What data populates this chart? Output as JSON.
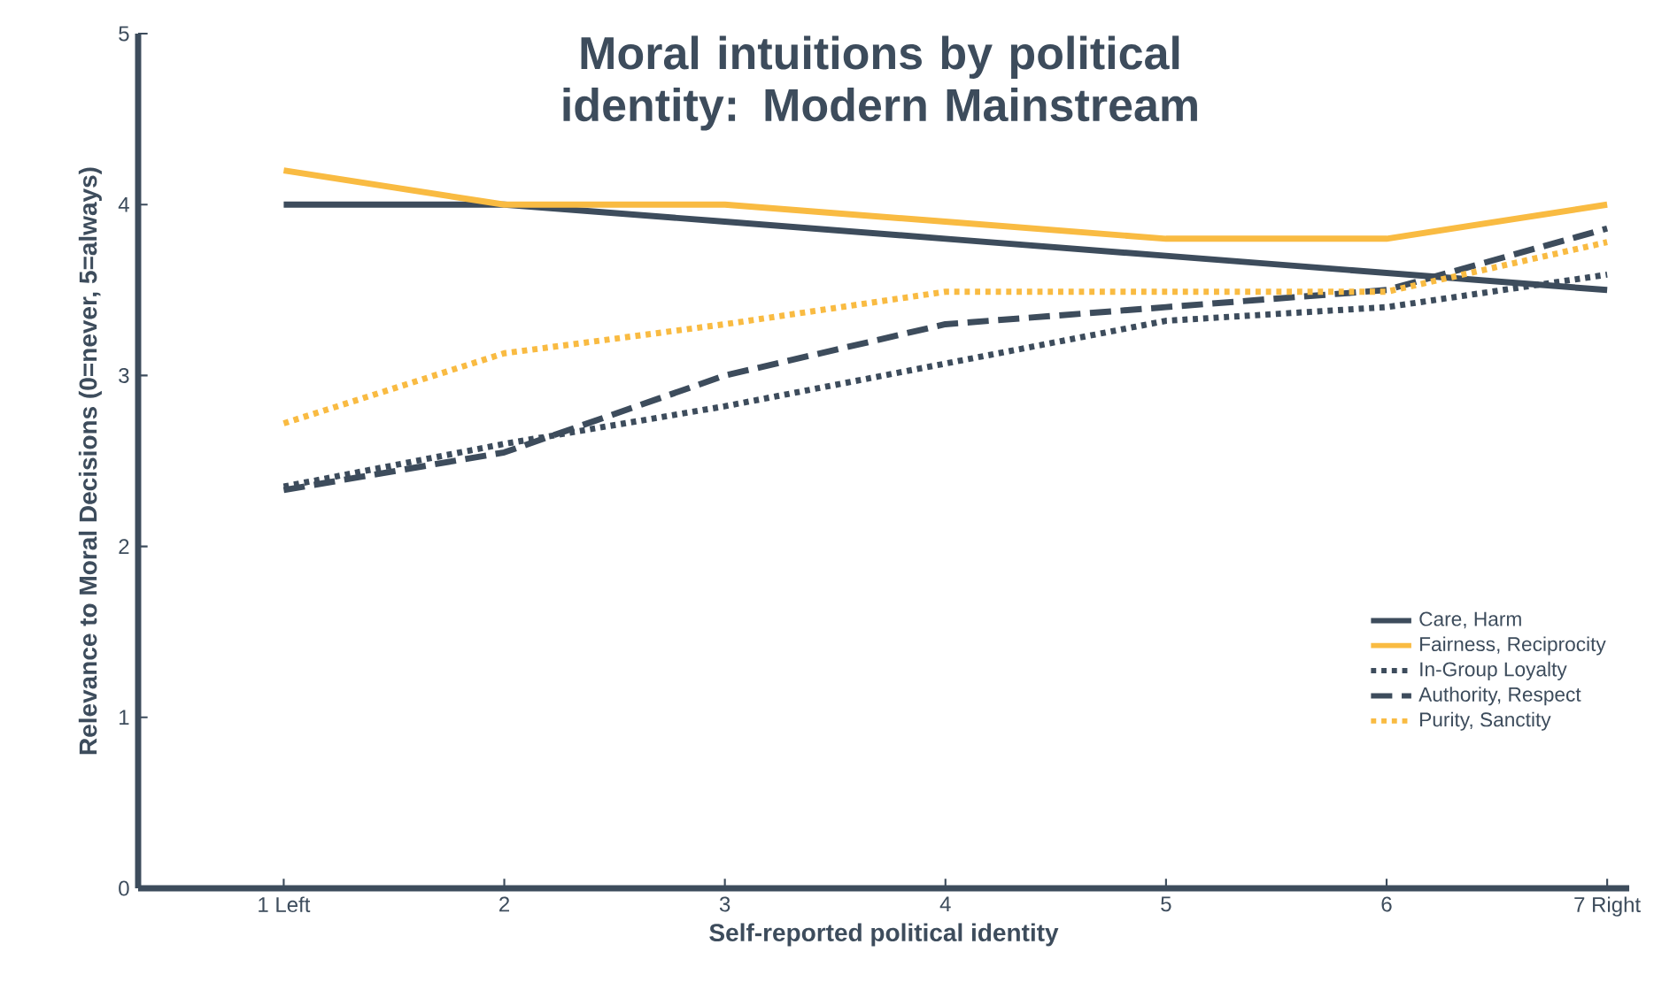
{
  "chart_data": {
    "type": "line",
    "title": "Moral intuitions by political identity: Modern Mainstream",
    "xlabel": "Self-reported political identity",
    "ylabel": "Relevance to Moral Decisions (0=never, 5=always)",
    "categories": [
      "1 Left",
      "2",
      "3",
      "4",
      "5",
      "6",
      "7 Right"
    ],
    "ylim": [
      0,
      5
    ],
    "yticks": [
      0,
      1,
      2,
      3,
      4,
      5
    ],
    "legend": "bottom right",
    "series": [
      {
        "name": "Care, Harm",
        "color": "#3d4c5c",
        "line_style": "solid",
        "values": [
          4.0,
          4.0,
          3.9,
          3.8,
          3.7,
          3.6,
          3.5
        ]
      },
      {
        "name": "Fairness, Reciprocity",
        "color": "#f9bb42",
        "line_style": "solid",
        "values": [
          4.2,
          4.0,
          4.0,
          3.9,
          3.8,
          3.8,
          4.0
        ]
      },
      {
        "name": "In-Group Loyalty",
        "color": "#3d4c5c",
        "line_style": "dotted",
        "values": [
          2.35,
          2.6,
          2.82,
          3.07,
          3.32,
          3.4,
          3.59
        ]
      },
      {
        "name": "Authority, Respect",
        "color": "#3d4c5c",
        "line_style": "dashed",
        "values": [
          2.33,
          2.55,
          3.0,
          3.3,
          3.4,
          3.5,
          3.86
        ]
      },
      {
        "name": "Purity, Sanctity",
        "color": "#f9bb42",
        "line_style": "dotted",
        "values": [
          2.72,
          3.13,
          3.3,
          3.49,
          3.49,
          3.49,
          3.78
        ]
      }
    ]
  }
}
